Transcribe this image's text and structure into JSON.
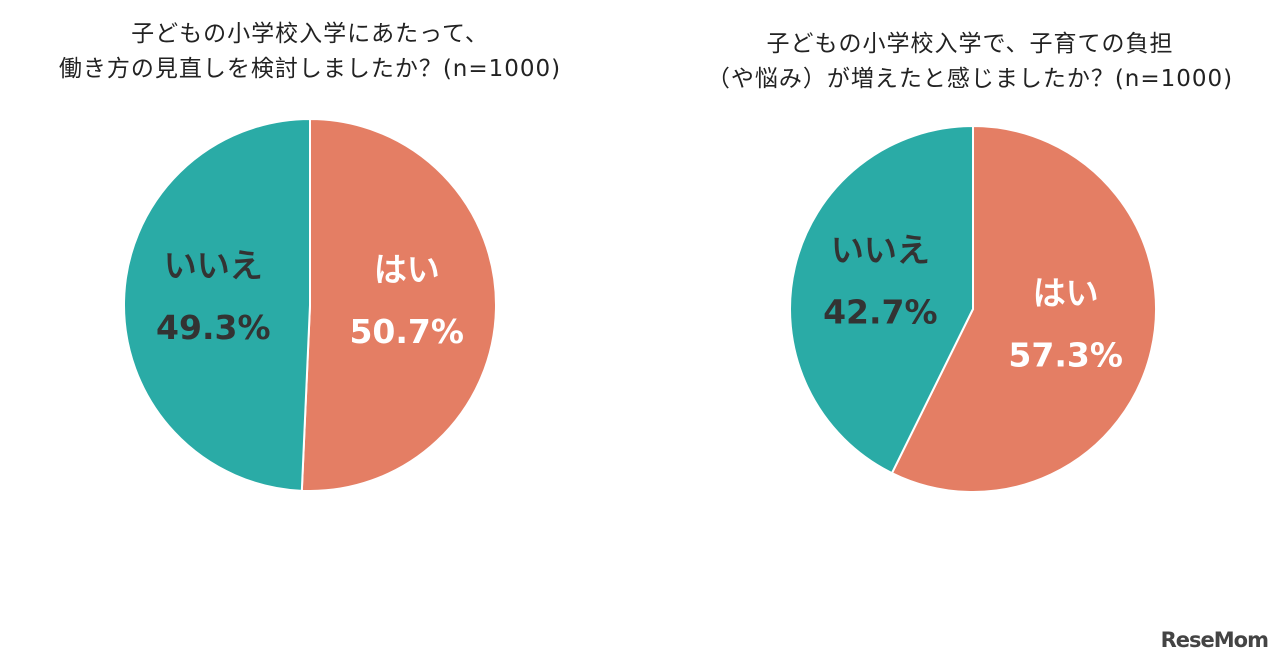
{
  "colors": {
    "yes": "#E47E64",
    "no": "#2AABA6",
    "label_on_yes": "#ffffff",
    "label_on_no": "#333333"
  },
  "chart_data": [
    {
      "type": "pie",
      "title_lines": [
        "子どもの小学校入学にあたって、",
        "働き方の見直しを検討しましたか？(n=1000)"
      ],
      "slices": [
        {
          "label": "はい",
          "value": 50.7,
          "value_text": "50.7%"
        },
        {
          "label": "いいえ",
          "value": 49.3,
          "value_text": "49.3%"
        }
      ]
    },
    {
      "type": "pie",
      "title_lines": [
        "子どもの小学校入学で、子育ての負担",
        "（や悩み）が増えたと感じましたか？(n=1000)"
      ],
      "slices": [
        {
          "label": "はい",
          "value": 57.3,
          "value_text": "57.3%"
        },
        {
          "label": "いいえ",
          "value": 42.7,
          "value_text": "42.7%"
        }
      ]
    }
  ],
  "watermark": "ReseMom"
}
